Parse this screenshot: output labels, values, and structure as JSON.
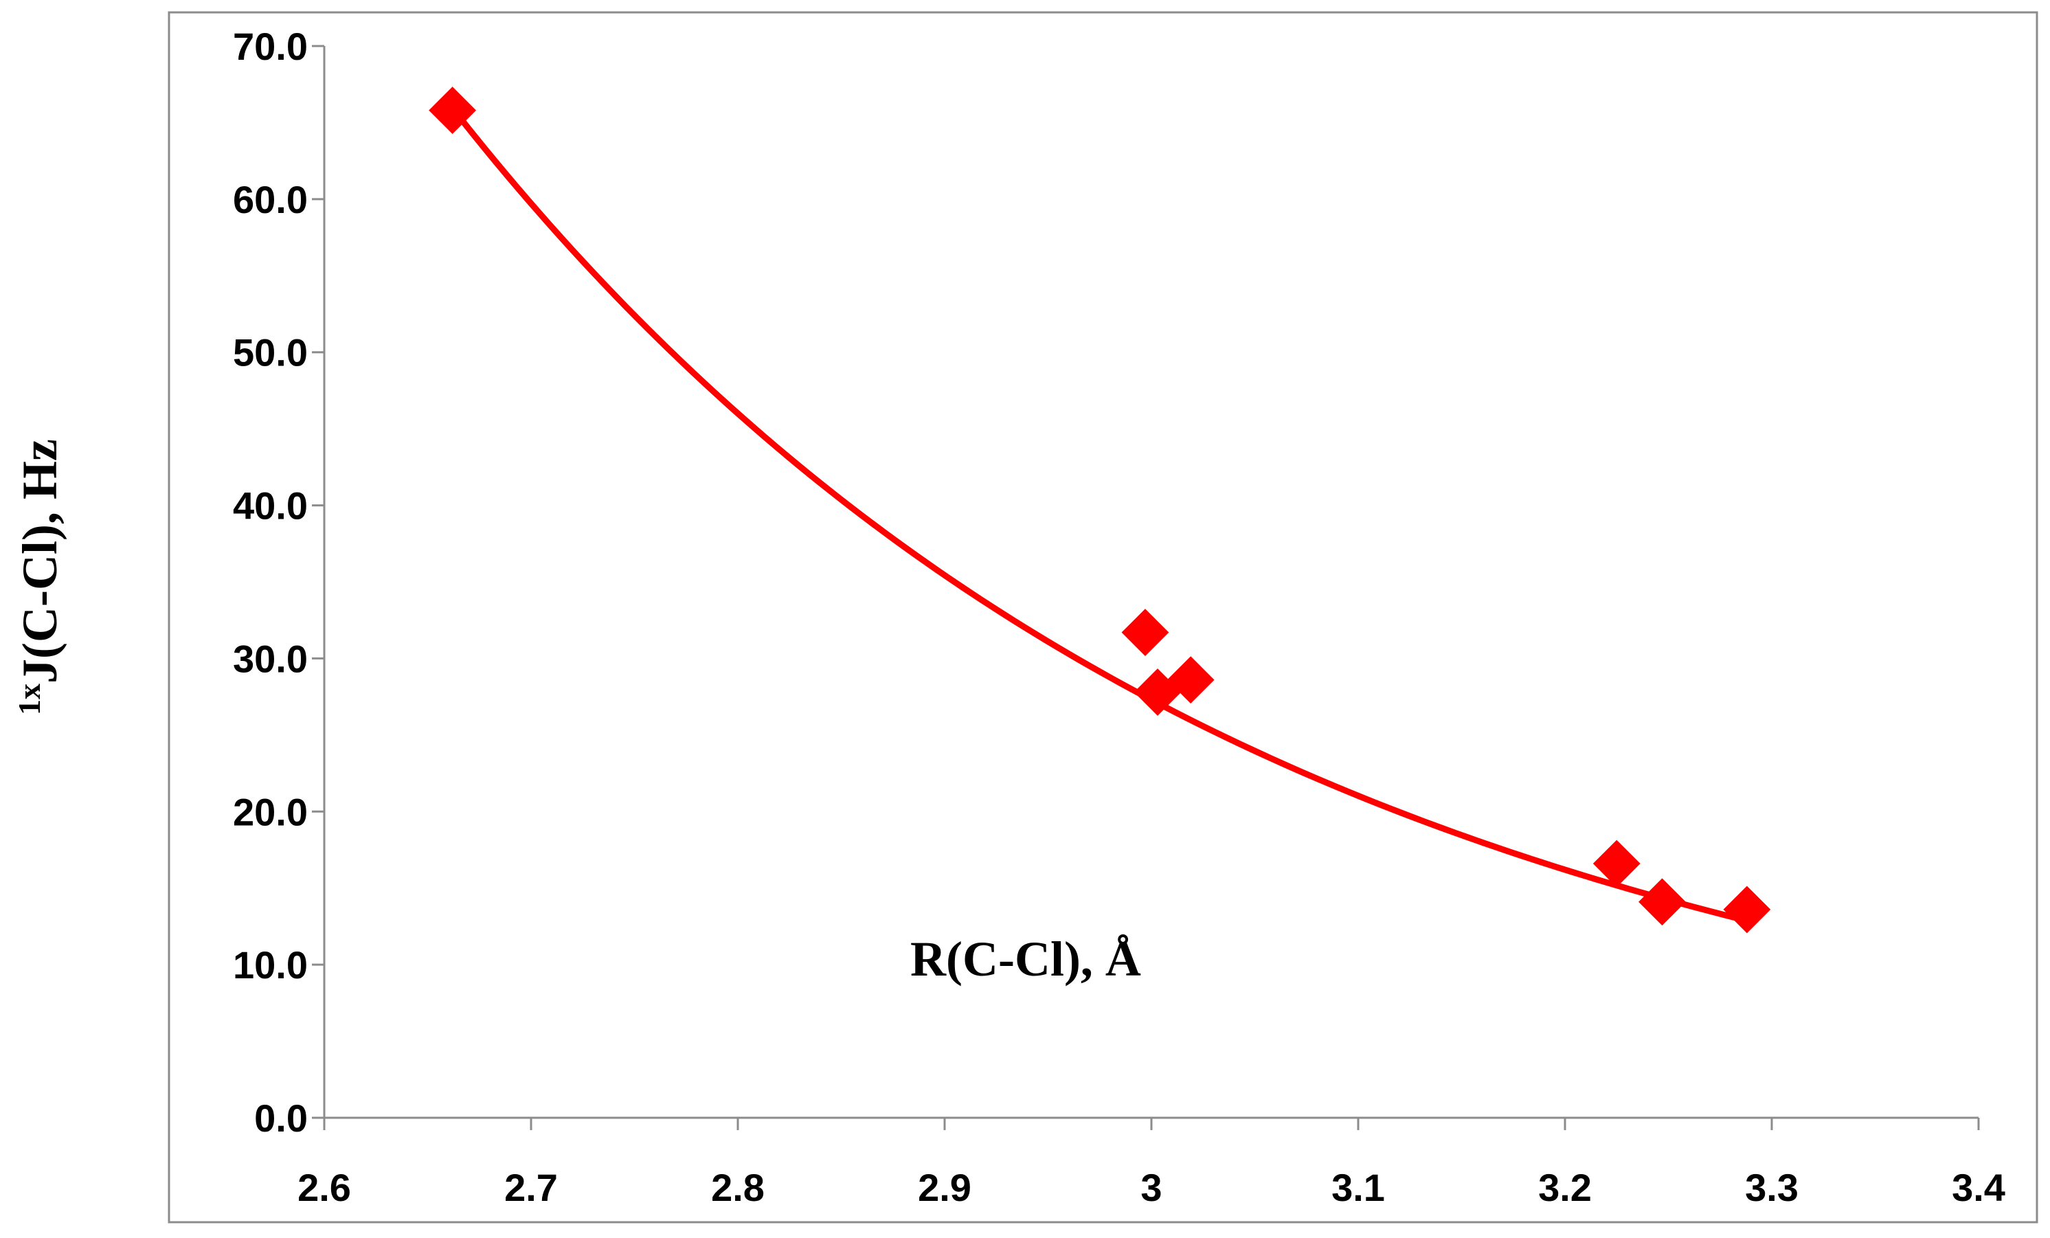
{
  "chart_data": {
    "type": "scatter",
    "title": "",
    "xlabel": "R(C-Cl), Å",
    "ylabel": {
      "superscript": "1x",
      "main": "J(C-Cl), Hz"
    },
    "xlim": [
      2.6,
      3.4
    ],
    "ylim": [
      0,
      70
    ],
    "x_ticks": [
      "2.6",
      "2.7",
      "2.8",
      "2.9",
      "3",
      "3.1",
      "3.2",
      "3.3",
      "3.4"
    ],
    "y_ticks": [
      "0.0",
      "10.0",
      "20.0",
      "30.0",
      "40.0",
      "50.0",
      "60.0",
      "70.0"
    ],
    "grid": false,
    "legend": "none",
    "series": [
      {
        "marker": "diamond",
        "color": "#ff0000",
        "points": [
          {
            "x": 2.662,
            "y": 65.8
          },
          {
            "x": 2.997,
            "y": 31.7
          },
          {
            "x": 3.003,
            "y": 27.8
          },
          {
            "x": 3.019,
            "y": 28.6
          },
          {
            "x": 3.225,
            "y": 16.6
          },
          {
            "x": 3.247,
            "y": 14.1
          },
          {
            "x": 3.288,
            "y": 13.6
          }
        ]
      }
    ],
    "trendline": {
      "type": "exponential",
      "color": "#ff0000",
      "a": 68451.6,
      "b": -2.609,
      "x_range": [
        2.662,
        3.288
      ]
    }
  }
}
